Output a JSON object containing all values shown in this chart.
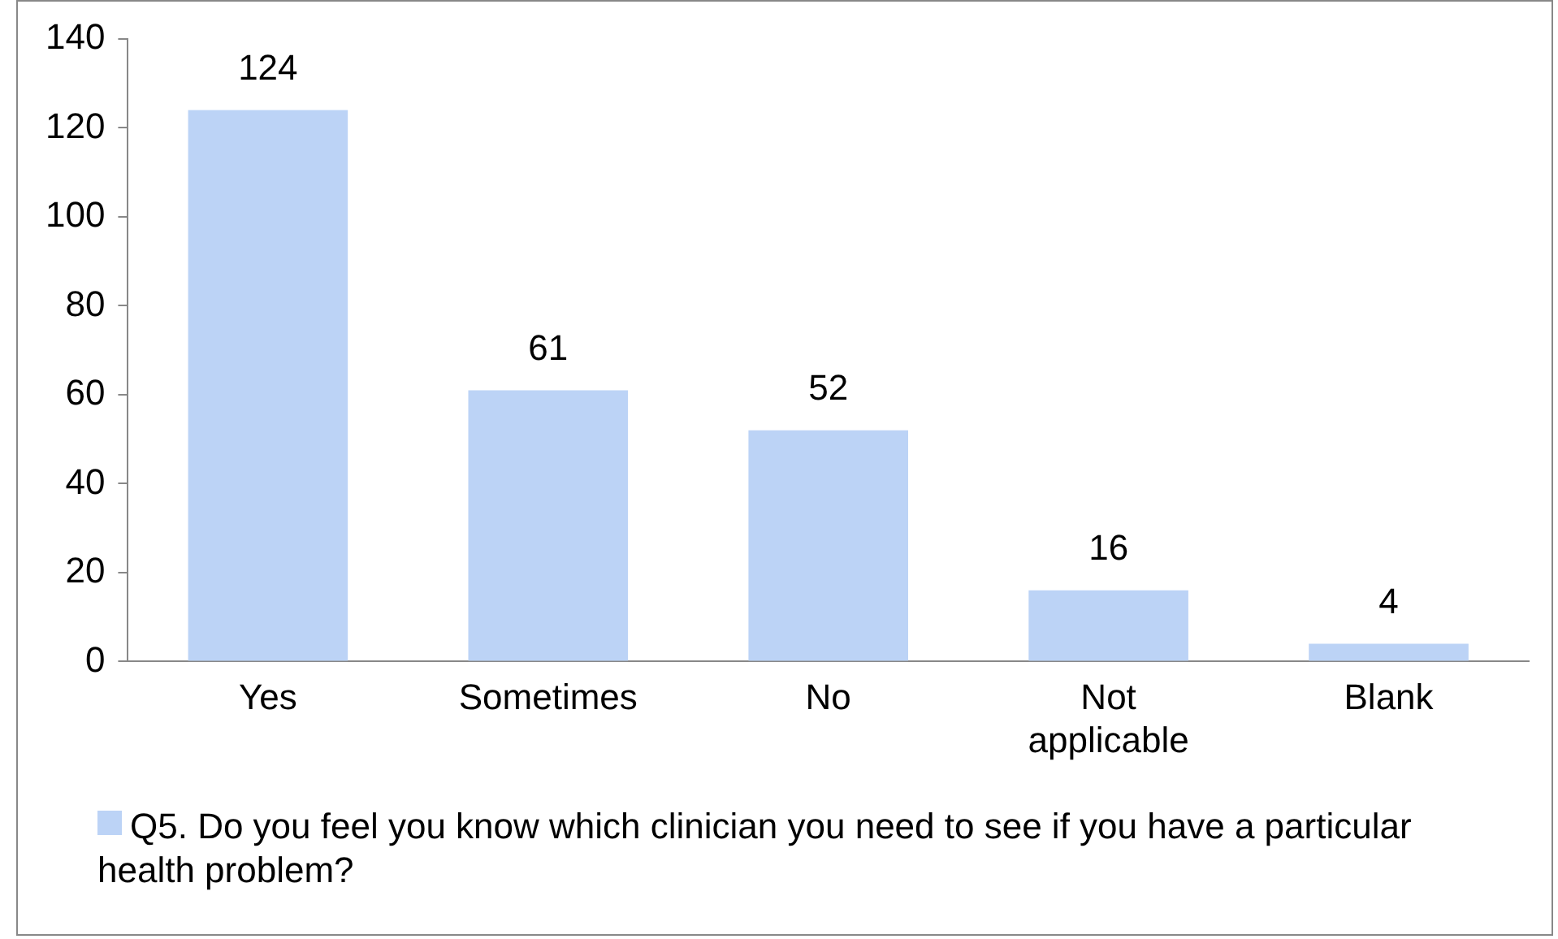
{
  "chart_data": {
    "type": "bar",
    "categories": [
      "Yes",
      "Sometimes",
      "No",
      "Not applicable",
      "Blank"
    ],
    "series": [
      {
        "name": "Q5. Do you feel you know which clinician you need to see if you have a particular health problem?",
        "color": "#bcd3f6",
        "values": [
          124,
          61,
          52,
          16,
          4
        ]
      }
    ],
    "ylim": [
      0,
      140
    ],
    "yticks": [
      0,
      20,
      40,
      60,
      80,
      100,
      120,
      140
    ],
    "grid": false,
    "data_labels": true,
    "legend": "bottom"
  }
}
